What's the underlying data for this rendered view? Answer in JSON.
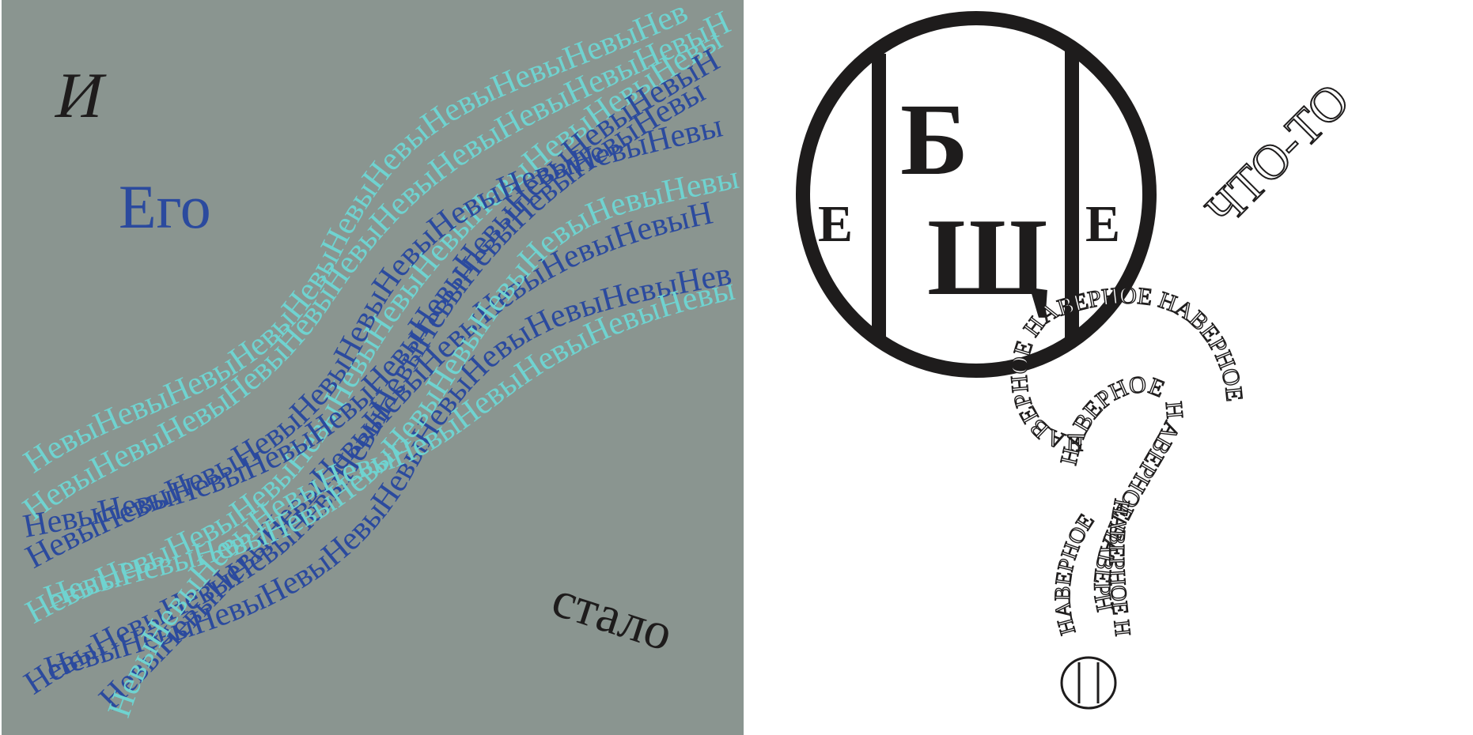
{
  "left_panel": {
    "background": "#8a9590",
    "word_1": "И",
    "word_2": "Его",
    "word_3": "стало",
    "ribbon_text": "Невы",
    "ribbon_colors": [
      "#2b4a9e",
      "#6fd3d0"
    ]
  },
  "emblem": {
    "left_letter": "Е",
    "top_letter": "Б",
    "bottom_letter": "Щ",
    "right_letter": "Е",
    "stroke": "#1e1c1c"
  },
  "diagonal_word": "ЧТО-ТО",
  "question_mark": {
    "word": "НАВЕРНОЕ",
    "stroke": "#1e1c1c"
  }
}
